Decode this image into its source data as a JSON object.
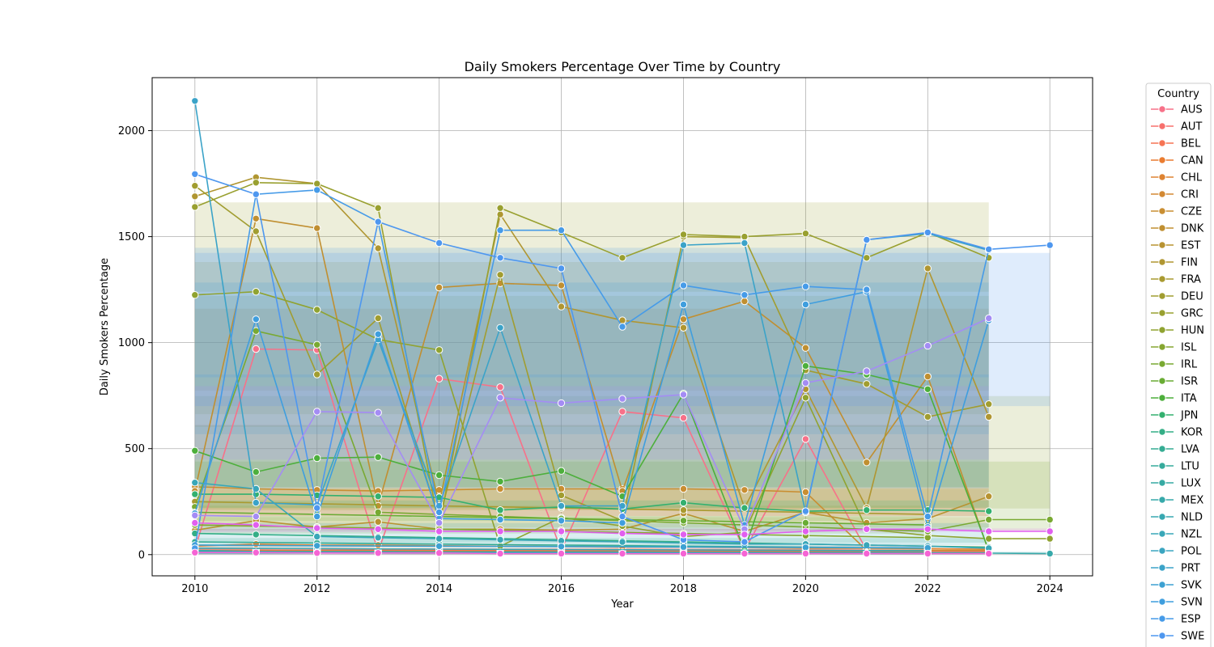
{
  "chart_data": {
    "type": "line",
    "title": "Daily Smokers Percentage Over Time by Country",
    "xlabel": "Year",
    "ylabel": "Daily Smokers Percentage",
    "xlim": [
      2009.3,
      2024.7
    ],
    "ylim": [
      -100,
      2250
    ],
    "xticks": [
      2010,
      2012,
      2014,
      2016,
      2018,
      2020,
      2022,
      2024
    ],
    "yticks": [
      0,
      500,
      1000,
      1500,
      2000
    ],
    "grid": true,
    "legend_title": "Country",
    "legend_position": "outside-right",
    "series": [
      {
        "name": "AUS",
        "color": "#f77189",
        "x": [
          2010,
          2011,
          2012,
          2013,
          2014,
          2015,
          2016,
          2017,
          2018,
          2019,
          2020,
          2021,
          2022,
          2023
        ],
        "y": [
          25,
          970,
          965,
          15,
          830,
          790,
          20,
          675,
          645,
          20,
          545,
          20,
          20,
          15
        ]
      },
      {
        "name": "AUT",
        "color": "#f7706d",
        "x": [
          2010,
          2012,
          2014,
          2016,
          2018,
          2020,
          2022
        ],
        "y": [
          30,
          28,
          26,
          25,
          24,
          22,
          20
        ]
      },
      {
        "name": "BEL",
        "color": "#f67454",
        "x": [
          2010,
          2011,
          2012,
          2013,
          2014,
          2015,
          2016,
          2017,
          2018,
          2019,
          2020,
          2021,
          2022,
          2023
        ],
        "y": [
          22,
          22,
          21,
          21,
          20,
          20,
          19,
          19,
          18,
          17,
          17,
          16,
          16,
          15
        ]
      },
      {
        "name": "CAN",
        "color": "#ea7c30",
        "x": [
          2010,
          2012,
          2014,
          2016,
          2018,
          2020,
          2022
        ],
        "y": [
          18,
          17,
          16,
          15,
          13,
          12,
          10
        ]
      },
      {
        "name": "CHL",
        "color": "#de8332",
        "x": [
          2010,
          2011,
          2012,
          2013,
          2014,
          2015,
          2016,
          2017,
          2018,
          2019,
          2020,
          2021,
          2022,
          2023
        ],
        "y": [
          40,
          50,
          45,
          45,
          42,
          40,
          38,
          35,
          35,
          33,
          30,
          30,
          28,
          25
        ]
      },
      {
        "name": "CRI",
        "color": "#d38933",
        "x": [
          2010,
          2012,
          2014,
          2016,
          2018,
          2020,
          2022
        ],
        "y": [
          12,
          11,
          10,
          9,
          9,
          8,
          7
        ]
      },
      {
        "name": "CZE",
        "color": "#c98e32",
        "x": [
          2010,
          2011,
          2012,
          2013,
          2014,
          2015,
          2016,
          2017,
          2018,
          2019,
          2020,
          2021,
          2022,
          2023
        ],
        "y": [
          320,
          310,
          305,
          300,
          305,
          310,
          310,
          310,
          310,
          305,
          295,
          20,
          20,
          20
        ]
      },
      {
        "name": "DNK",
        "color": "#c08f31",
        "x": [
          2010,
          2011,
          2012,
          2013,
          2014,
          2015,
          2016,
          2017,
          2018,
          2019,
          2020,
          2021,
          2022,
          2023
        ],
        "y": [
          300,
          1585,
          1540,
          230,
          1260,
          1280,
          1270,
          300,
          1110,
          1195,
          975,
          435,
          840,
          15
        ]
      },
      {
        "name": "EST",
        "color": "#b89331",
        "x": [
          2010,
          2011,
          2012,
          2013,
          2014,
          2015,
          2016,
          2017,
          2018,
          2019,
          2020,
          2021,
          2022,
          2023
        ],
        "y": [
          115,
          160,
          130,
          155,
          120,
          120,
          115,
          120,
          195,
          110,
          200,
          150,
          170,
          275
        ]
      },
      {
        "name": "FIN",
        "color": "#b09631",
        "x": [
          2010,
          2011,
          2012,
          2013,
          2014,
          2015,
          2016,
          2017,
          2018,
          2019,
          2020,
          2021,
          2022,
          2023
        ],
        "y": [
          1690,
          1780,
          1750,
          1445,
          240,
          1605,
          1170,
          1105,
          1070,
          220,
          780,
          220,
          1350,
          650
        ]
      },
      {
        "name": "FRA",
        "color": "#a99a30",
        "x": [
          2010,
          2012,
          2014,
          2016,
          2018,
          2020,
          2022
        ],
        "y": [
          250,
          240,
          230,
          220,
          210,
          200,
          190
        ]
      },
      {
        "name": "DEU",
        "color": "#a19d30",
        "x": [
          2010,
          2011,
          2012,
          2013,
          2014,
          2015,
          2016,
          2017,
          2018,
          2019,
          2020,
          2021,
          2022,
          2023
        ],
        "y": [
          1740,
          1525,
          850,
          1115,
          160,
          1320,
          280,
          160,
          1500,
          1495,
          870,
          805,
          650,
          710
        ]
      },
      {
        "name": "GRC",
        "color": "#99a030",
        "x": [
          2010,
          2011,
          2012,
          2013,
          2014,
          2015,
          2016,
          2017,
          2018,
          2019,
          2020,
          2021,
          2022,
          2023
        ],
        "y": [
          1640,
          1755,
          1750,
          1635,
          130,
          1635,
          1520,
          1400,
          1510,
          1500,
          1515,
          1400,
          1520,
          1400
        ]
      },
      {
        "name": "HUN",
        "color": "#90a331",
        "x": [
          2010,
          2011,
          2012,
          2013,
          2014,
          2015,
          2016,
          2017,
          2018,
          2019,
          2020,
          2021,
          2022,
          2023,
          2024
        ],
        "y": [
          1225,
          1240,
          1155,
          1015,
          965,
          40,
          175,
          135,
          85,
          105,
          740,
          120,
          90,
          75,
          75
        ]
      },
      {
        "name": "ISL",
        "color": "#86a631",
        "x": [
          2010,
          2012,
          2014,
          2016,
          2018,
          2020,
          2022
        ],
        "y": [
          140,
          130,
          120,
          110,
          100,
          90,
          80
        ]
      },
      {
        "name": "IRL",
        "color": "#79a932",
        "x": [
          2010,
          2011,
          2012,
          2013,
          2014,
          2015,
          2016,
          2017,
          2018,
          2019,
          2020,
          2021,
          2022,
          2023,
          2024
        ],
        "y": [
          225,
          1055,
          990,
          200,
          190,
          180,
          170,
          160,
          150,
          140,
          130,
          120,
          110,
          165,
          165
        ]
      },
      {
        "name": "ISR",
        "color": "#69ac34",
        "x": [
          2010,
          2012,
          2014,
          2016,
          2018,
          2020,
          2022
        ],
        "y": [
          200,
          190,
          180,
          170,
          160,
          150,
          140
        ]
      },
      {
        "name": "ITA",
        "color": "#4daf3c",
        "x": [
          2010,
          2011,
          2012,
          2013,
          2014,
          2015,
          2016,
          2017,
          2018,
          2019,
          2020,
          2021,
          2022,
          2023
        ],
        "y": [
          490,
          390,
          455,
          460,
          375,
          345,
          395,
          275,
          760,
          20,
          890,
          850,
          780,
          20
        ]
      },
      {
        "name": "JPN",
        "color": "#33b06f",
        "x": [
          2010,
          2011,
          2012,
          2013,
          2014,
          2015,
          2016,
          2017,
          2018,
          2019,
          2020,
          2021,
          2022,
          2023
        ],
        "y": [
          285,
          285,
          280,
          275,
          270,
          210,
          225,
          215,
          245,
          220,
          205,
          210,
          210,
          205
        ]
      },
      {
        "name": "KOR",
        "color": "#34ae86",
        "x": [
          2010,
          2011,
          2012,
          2013,
          2014,
          2015,
          2016,
          2017,
          2018,
          2019,
          2020,
          2021,
          2022,
          2023
        ],
        "y": [
          100,
          95,
          90,
          85,
          80,
          75,
          70,
          65,
          60,
          55,
          50,
          45,
          40,
          35
        ]
      },
      {
        "name": "LVA",
        "color": "#35ac93",
        "x": [
          2010,
          2012,
          2014,
          2016,
          2018,
          2020,
          2022
        ],
        "y": [
          60,
          55,
          50,
          45,
          40,
          35,
          30
        ]
      },
      {
        "name": "LTU",
        "color": "#36ab9c",
        "x": [
          2010,
          2011,
          2012,
          2013,
          2014,
          2015,
          2016,
          2017,
          2018,
          2019,
          2020,
          2021,
          2022,
          2023
        ],
        "y": [
          15,
          15,
          14,
          14,
          13,
          13,
          12,
          12,
          11,
          11,
          10,
          10,
          9,
          9
        ]
      },
      {
        "name": "LUX",
        "color": "#36aaa3",
        "x": [
          2010,
          2012,
          2014,
          2016,
          2018,
          2020,
          2022
        ],
        "y": [
          8,
          8,
          7,
          7,
          6,
          6,
          5
        ]
      },
      {
        "name": "MEX",
        "color": "#37a9aa",
        "x": [
          2010,
          2011,
          2012,
          2013,
          2014,
          2015,
          2016,
          2017,
          2018,
          2019,
          2020,
          2021,
          2022,
          2023,
          2024
        ],
        "y": [
          20,
          15,
          10,
          10,
          10,
          10,
          10,
          8,
          8,
          8,
          8,
          8,
          7,
          7,
          5
        ]
      },
      {
        "name": "NLD",
        "color": "#38a8b1",
        "x": [
          2010,
          2012,
          2014,
          2016,
          2018,
          2020,
          2022
        ],
        "y": [
          30,
          28,
          26,
          24,
          22,
          20,
          18
        ]
      },
      {
        "name": "NZL",
        "color": "#39a7b8",
        "x": [
          2010,
          2011,
          2012,
          2013,
          2014,
          2015,
          2016,
          2017,
          2018,
          2019,
          2020,
          2021,
          2022,
          2023
        ],
        "y": [
          340,
          310,
          85,
          80,
          75,
          70,
          65,
          60,
          55,
          50,
          50,
          45,
          40,
          30
        ]
      },
      {
        "name": "POL",
        "color": "#3aa5c0",
        "x": [
          2010,
          2012,
          2014,
          2016,
          2018,
          2020,
          2022
        ],
        "y": [
          12,
          11,
          10,
          9,
          8,
          7,
          6
        ]
      },
      {
        "name": "PRT",
        "color": "#3ba3c8",
        "x": [
          2010,
          2011,
          2012,
          2013,
          2014,
          2015,
          2016,
          2017,
          2018,
          2019,
          2020,
          2021,
          2022,
          2023
        ],
        "y": [
          2140,
          245,
          235,
          1015,
          230,
          1070,
          230,
          230,
          1460,
          1470,
          200,
          1485,
          1515,
          1435
        ]
      },
      {
        "name": "SVK",
        "color": "#3da1d2",
        "x": [
          2010,
          2012,
          2014,
          2016,
          2018,
          2020,
          2022
        ],
        "y": [
          45,
          42,
          40,
          38,
          36,
          34,
          32
        ]
      },
      {
        "name": "SVN",
        "color": "#3f9ede",
        "x": [
          2010,
          2011,
          2012,
          2013,
          2014,
          2015,
          2016,
          2017,
          2018,
          2019,
          2020,
          2021,
          2022,
          2023
        ],
        "y": [
          195,
          1110,
          180,
          1040,
          170,
          165,
          160,
          150,
          1180,
          140,
          1180,
          1240,
          130,
          1105
        ]
      },
      {
        "name": "ESP",
        "color": "#469be8",
        "x": [
          2010,
          2011,
          2012,
          2013,
          2014,
          2015,
          2016,
          2017,
          2018,
          2019,
          2020,
          2021,
          2022,
          2023
        ],
        "y": [
          30,
          1700,
          1720,
          1570,
          200,
          1530,
          1530,
          1075,
          1270,
          1225,
          1265,
          1250,
          180,
          1440
        ]
      },
      {
        "name": "SWE",
        "color": "#4e97ef",
        "x": [
          2010,
          2011,
          2012,
          2013,
          2014,
          2015,
          2016,
          2017,
          2018,
          2019,
          2020,
          2021,
          2022,
          2023,
          2024
        ],
        "y": [
          1795,
          1700,
          220,
          1570,
          1470,
          1400,
          1350,
          180,
          70,
          60,
          205,
          1485,
          1520,
          1440,
          1460
        ]
      },
      {
        "name": "",
        "color": "#a48cf4",
        "x": [
          2010,
          2011,
          2012,
          2013,
          2014,
          2015,
          2016,
          2017,
          2018,
          2019,
          2020,
          2021,
          2022,
          2023
        ],
        "y": [
          185,
          180,
          675,
          670,
          150,
          740,
          715,
          735,
          755,
          120,
          810,
          865,
          985,
          1115
        ]
      },
      {
        "name": "",
        "color": "#e15fef",
        "x": [
          2010,
          2011,
          2012,
          2013,
          2014,
          2015,
          2016,
          2017,
          2018,
          2019,
          2020,
          2021,
          2022,
          2023,
          2024
        ],
        "y": [
          150,
          140,
          125,
          120,
          110,
          110,
          110,
          100,
          95,
          95,
          110,
          120,
          120,
          110,
          110
        ]
      },
      {
        "name": "",
        "color": "#f564d4",
        "x": [
          2010,
          2011,
          2012,
          2013,
          2014,
          2015,
          2016,
          2017,
          2018,
          2019,
          2020,
          2021,
          2022,
          2023
        ],
        "y": [
          10,
          10,
          8,
          8,
          8,
          5,
          5,
          5,
          5,
          5,
          5,
          5,
          5,
          5
        ]
      }
    ]
  }
}
